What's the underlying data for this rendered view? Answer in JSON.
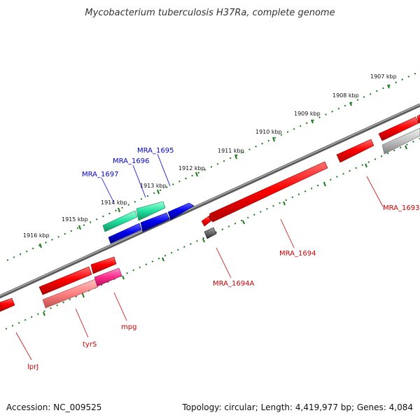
{
  "title": "Mycobacterium tuberculosis H37Ra, complete genome",
  "footer": {
    "accession": "Accession: NC_009525",
    "summary": "Topology: circular; Length: 4,419,977 bp; Genes: 4,084"
  },
  "colors": {
    "forward_strand": "#ff0000",
    "reverse_strand": "#0000ee",
    "rna": "#00c878",
    "pseudo": "#ff3c96",
    "tick": "#1a7a1a",
    "backbone": "#808080"
  },
  "scale_ticks": [
    "1907 kbp",
    "1908 kbp",
    "1909 kbp",
    "1910 kbp",
    "1911 kbp",
    "1912 kbp",
    "1913 kbp",
    "1914 kbp",
    "1915 kbp",
    "1916 kbp"
  ],
  "gene_labels": [
    {
      "text": "MRA_1695",
      "color": "#0000cc"
    },
    {
      "text": "MRA_1696",
      "color": "#0000cc"
    },
    {
      "text": "MRA_1697",
      "color": "#0000cc"
    },
    {
      "text": "MRA_1693",
      "color": "#cc0000"
    },
    {
      "text": "MRA_1694",
      "color": "#cc0000"
    },
    {
      "text": "MRA_1694A",
      "color": "#cc0000"
    },
    {
      "text": "mpg",
      "color": "#cc0000"
    },
    {
      "text": "tyrS",
      "color": "#cc0000"
    },
    {
      "text": "lprJ",
      "color": "#cc0000"
    }
  ]
}
